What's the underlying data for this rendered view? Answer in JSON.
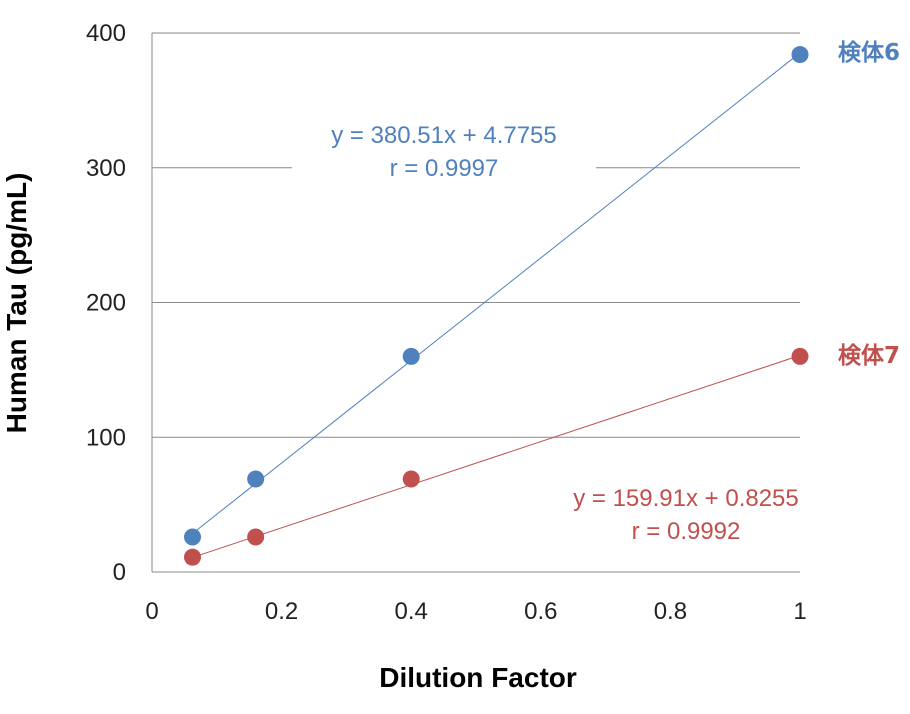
{
  "chart_data": {
    "type": "scatter",
    "xlabel": "Dilution Factor",
    "ylabel": "Human Tau (pg/mL)",
    "xlim": [
      0,
      1
    ],
    "ylim": [
      0,
      400
    ],
    "x_ticks": [
      "0",
      "0.2",
      "0.4",
      "0.6",
      "0.8",
      "1"
    ],
    "y_ticks": [
      "0",
      "100",
      "200",
      "300",
      "400"
    ],
    "grid": "horizontal",
    "series": [
      {
        "name": "検体6",
        "color": "#4F81BD",
        "x": [
          0.0625,
          0.16,
          0.4,
          1.0
        ],
        "y": [
          26,
          69,
          160,
          384
        ],
        "trendline": {
          "slope": 380.51,
          "intercept": 4.7755
        },
        "equation": "y = 380.51x + 4.7755",
        "r_text": "r = 0.9997"
      },
      {
        "name": "検体7",
        "color": "#C0504D",
        "x": [
          0.0625,
          0.16,
          0.4,
          1.0
        ],
        "y": [
          11,
          26,
          69,
          160
        ],
        "trendline": {
          "slope": 159.91,
          "intercept": 0.8255
        },
        "equation": "y = 159.91x + 0.8255",
        "r_text": "r = 0.9992"
      }
    ]
  }
}
